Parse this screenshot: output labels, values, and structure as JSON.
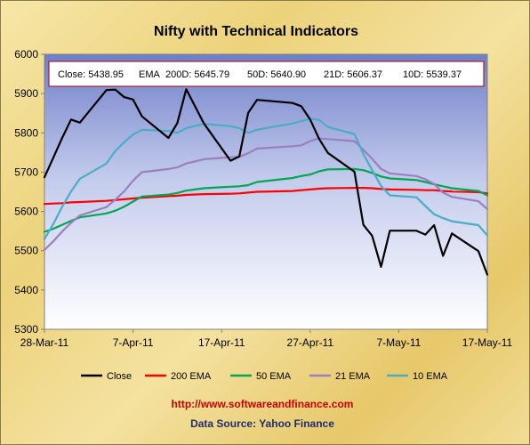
{
  "chart_data": {
    "type": "line",
    "title": "Nifty with Technical Indicators",
    "info_box": {
      "close": "Close: 5438.95",
      "ema_label": "EMA",
      "ema_200": "200D: 5645.79",
      "ema_50": "50D: 5640.90",
      "ema_21": "21D: 5606.37",
      "ema_10": "10D: 5539.37"
    },
    "x_range": [
      "2011-03-28",
      "2011-05-17"
    ],
    "x_ticks": [
      {
        "date": "2011-03-28",
        "label": "28-Mar-11"
      },
      {
        "date": "2011-04-07",
        "label": "7-Apr-11"
      },
      {
        "date": "2011-04-17",
        "label": "17-Apr-11"
      },
      {
        "date": "2011-04-27",
        "label": "27-Apr-11"
      },
      {
        "date": "2011-05-07",
        "label": "7-May-11"
      },
      {
        "date": "2011-05-17",
        "label": "17-May-11"
      }
    ],
    "ylim": [
      5300,
      6000
    ],
    "y_ticks": [
      5300,
      5400,
      5500,
      5600,
      5700,
      5800,
      5900,
      6000
    ],
    "grid": false,
    "legend_position": "bottom",
    "series": [
      {
        "name": "Close",
        "color": "#000000",
        "points": [
          [
            "2011-03-28",
            5687
          ],
          [
            "2011-03-29",
            5737
          ],
          [
            "2011-03-30",
            5787
          ],
          [
            "2011-03-31",
            5834
          ],
          [
            "2011-04-01",
            5826
          ],
          [
            "2011-04-04",
            5909
          ],
          [
            "2011-04-05",
            5910
          ],
          [
            "2011-04-06",
            5891
          ],
          [
            "2011-04-07",
            5885
          ],
          [
            "2011-04-08",
            5842
          ],
          [
            "2011-04-11",
            5787
          ],
          [
            "2011-04-12",
            5825
          ],
          [
            "2011-04-13",
            5911
          ],
          [
            "2011-04-15",
            5824
          ],
          [
            "2011-04-18",
            5729
          ],
          [
            "2011-04-19",
            5740
          ],
          [
            "2011-04-20",
            5851
          ],
          [
            "2011-04-21",
            5884
          ],
          [
            "2011-04-25",
            5876
          ],
          [
            "2011-04-26",
            5868
          ],
          [
            "2011-04-27",
            5834
          ],
          [
            "2011-04-28",
            5785
          ],
          [
            "2011-04-29",
            5749
          ],
          [
            "2011-05-02",
            5701
          ],
          [
            "2011-05-03",
            5566
          ],
          [
            "2011-05-04",
            5538
          ],
          [
            "2011-05-05",
            5459
          ],
          [
            "2011-05-06",
            5551
          ],
          [
            "2011-05-09",
            5551
          ],
          [
            "2011-05-10",
            5541
          ],
          [
            "2011-05-11",
            5565
          ],
          [
            "2011-05-12",
            5487
          ],
          [
            "2011-05-13",
            5544
          ],
          [
            "2011-05-16",
            5499
          ],
          [
            "2011-05-17",
            5439
          ]
        ]
      },
      {
        "name": "200 EMA",
        "color": "#ff0000",
        "points": [
          [
            "2011-03-28",
            5619
          ],
          [
            "2011-03-29",
            5620
          ],
          [
            "2011-03-30",
            5621
          ],
          [
            "2011-03-31",
            5623
          ],
          [
            "2011-04-01",
            5624
          ],
          [
            "2011-04-04",
            5627
          ],
          [
            "2011-04-05",
            5629
          ],
          [
            "2011-04-06",
            5631
          ],
          [
            "2011-04-07",
            5633
          ],
          [
            "2011-04-08",
            5635
          ],
          [
            "2011-04-11",
            5639
          ],
          [
            "2011-04-12",
            5640
          ],
          [
            "2011-04-13",
            5642
          ],
          [
            "2011-04-15",
            5644
          ],
          [
            "2011-04-18",
            5645
          ],
          [
            "2011-04-19",
            5646
          ],
          [
            "2011-04-20",
            5648
          ],
          [
            "2011-04-21",
            5650
          ],
          [
            "2011-04-25",
            5652
          ],
          [
            "2011-04-26",
            5654
          ],
          [
            "2011-04-27",
            5656
          ],
          [
            "2011-04-28",
            5658
          ],
          [
            "2011-04-29",
            5659
          ],
          [
            "2011-05-02",
            5660
          ],
          [
            "2011-05-03",
            5660
          ],
          [
            "2011-05-04",
            5659
          ],
          [
            "2011-05-05",
            5657
          ],
          [
            "2011-05-06",
            5656
          ],
          [
            "2011-05-09",
            5655
          ],
          [
            "2011-05-10",
            5654
          ],
          [
            "2011-05-11",
            5654
          ],
          [
            "2011-05-12",
            5652
          ],
          [
            "2011-05-13",
            5651
          ],
          [
            "2011-05-16",
            5649
          ],
          [
            "2011-05-17",
            5646
          ]
        ]
      },
      {
        "name": "50 EMA",
        "color": "#00a651",
        "points": [
          [
            "2011-03-28",
            5548
          ],
          [
            "2011-03-29",
            5556
          ],
          [
            "2011-03-30",
            5566
          ],
          [
            "2011-03-31",
            5576
          ],
          [
            "2011-04-01",
            5585
          ],
          [
            "2011-04-04",
            5595
          ],
          [
            "2011-04-05",
            5602
          ],
          [
            "2011-04-06",
            5612
          ],
          [
            "2011-04-07",
            5625
          ],
          [
            "2011-04-08",
            5638
          ],
          [
            "2011-04-11",
            5643
          ],
          [
            "2011-04-12",
            5647
          ],
          [
            "2011-04-13",
            5653
          ],
          [
            "2011-04-15",
            5659
          ],
          [
            "2011-04-18",
            5663
          ],
          [
            "2011-04-19",
            5664
          ],
          [
            "2011-04-20",
            5667
          ],
          [
            "2011-04-21",
            5675
          ],
          [
            "2011-04-25",
            5685
          ],
          [
            "2011-04-26",
            5690
          ],
          [
            "2011-04-27",
            5694
          ],
          [
            "2011-04-28",
            5702
          ],
          [
            "2011-04-29",
            5707
          ],
          [
            "2011-05-02",
            5708
          ],
          [
            "2011-05-03",
            5705
          ],
          [
            "2011-05-04",
            5698
          ],
          [
            "2011-05-05",
            5689
          ],
          [
            "2011-05-06",
            5684
          ],
          [
            "2011-05-09",
            5680
          ],
          [
            "2011-05-10",
            5675
          ],
          [
            "2011-05-11",
            5669
          ],
          [
            "2011-05-12",
            5664
          ],
          [
            "2011-05-13",
            5659
          ],
          [
            "2011-05-16",
            5652
          ],
          [
            "2011-05-17",
            5641
          ]
        ]
      },
      {
        "name": "21 EMA",
        "color": "#9b7fc0",
        "points": [
          [
            "2011-03-28",
            5502
          ],
          [
            "2011-03-29",
            5524
          ],
          [
            "2011-03-30",
            5549
          ],
          [
            "2011-03-31",
            5571
          ],
          [
            "2011-04-01",
            5590
          ],
          [
            "2011-04-04",
            5611
          ],
          [
            "2011-04-05",
            5630
          ],
          [
            "2011-04-06",
            5651
          ],
          [
            "2011-04-07",
            5678
          ],
          [
            "2011-04-08",
            5700
          ],
          [
            "2011-04-11",
            5708
          ],
          [
            "2011-04-12",
            5712
          ],
          [
            "2011-04-13",
            5722
          ],
          [
            "2011-04-15",
            5733
          ],
          [
            "2011-04-18",
            5738
          ],
          [
            "2011-04-19",
            5739
          ],
          [
            "2011-04-20",
            5748
          ],
          [
            "2011-04-21",
            5760
          ],
          [
            "2011-04-25",
            5766
          ],
          [
            "2011-04-26",
            5768
          ],
          [
            "2011-04-27",
            5779
          ],
          [
            "2011-04-28",
            5786
          ],
          [
            "2011-04-29",
            5784
          ],
          [
            "2011-05-02",
            5779
          ],
          [
            "2011-05-03",
            5757
          ],
          [
            "2011-05-04",
            5734
          ],
          [
            "2011-05-05",
            5708
          ],
          [
            "2011-05-06",
            5697
          ],
          [
            "2011-05-09",
            5690
          ],
          [
            "2011-05-10",
            5682
          ],
          [
            "2011-05-11",
            5670
          ],
          [
            "2011-05-12",
            5648
          ],
          [
            "2011-05-13",
            5637
          ],
          [
            "2011-05-16",
            5626
          ],
          [
            "2011-05-17",
            5606
          ]
        ]
      },
      {
        "name": "10 EMA",
        "color": "#4bacc6",
        "points": [
          [
            "2011-03-28",
            5530
          ],
          [
            "2011-03-29",
            5568
          ],
          [
            "2011-03-30",
            5612
          ],
          [
            "2011-03-31",
            5651
          ],
          [
            "2011-04-01",
            5683
          ],
          [
            "2011-04-04",
            5722
          ],
          [
            "2011-04-05",
            5754
          ],
          [
            "2011-04-06",
            5776
          ],
          [
            "2011-04-07",
            5796
          ],
          [
            "2011-04-08",
            5808
          ],
          [
            "2011-04-11",
            5805
          ],
          [
            "2011-04-12",
            5800
          ],
          [
            "2011-04-13",
            5812
          ],
          [
            "2011-04-15",
            5823
          ],
          [
            "2011-04-18",
            5817
          ],
          [
            "2011-04-19",
            5812
          ],
          [
            "2011-04-20",
            5800
          ],
          [
            "2011-04-21",
            5808
          ],
          [
            "2011-04-25",
            5824
          ],
          [
            "2011-04-26",
            5830
          ],
          [
            "2011-04-27",
            5836
          ],
          [
            "2011-04-28",
            5833
          ],
          [
            "2011-04-29",
            5815
          ],
          [
            "2011-05-02",
            5797
          ],
          [
            "2011-05-03",
            5746
          ],
          [
            "2011-05-04",
            5705
          ],
          [
            "2011-05-05",
            5665
          ],
          [
            "2011-05-06",
            5641
          ],
          [
            "2011-05-09",
            5636
          ],
          [
            "2011-05-10",
            5614
          ],
          [
            "2011-05-11",
            5593
          ],
          [
            "2011-05-12",
            5583
          ],
          [
            "2011-05-13",
            5575
          ],
          [
            "2011-05-16",
            5565
          ],
          [
            "2011-05-17",
            5539
          ]
        ]
      }
    ]
  },
  "footer": {
    "url": "http://www.softwareandfinance.com",
    "source": "Data Source: Yahoo Finance"
  },
  "colors": {
    "frame_background": "#eed584",
    "plot_background_top": "#6f7fc8",
    "plot_background_bottom": "#ffffff",
    "info_border": "#a0222e"
  }
}
